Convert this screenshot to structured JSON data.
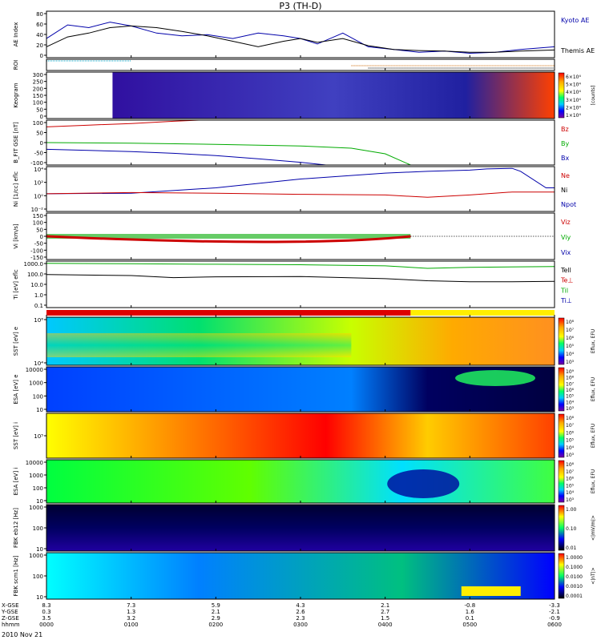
{
  "title": "P3 (TH-D)",
  "date": "2010 Nov 21",
  "chart_data": {
    "type": "line",
    "x_ticks": [
      "0000",
      "0100",
      "0200",
      "0300",
      "0400",
      "0500",
      "0600"
    ],
    "position_rows": [
      {
        "label": "X-GSE",
        "values": [
          "8.3",
          "7.3",
          "5.9",
          "4.3",
          "2.1",
          "-0.8",
          "-3.3"
        ]
      },
      {
        "label": "Y-GSE",
        "values": [
          "0.3",
          "1.3",
          "2.1",
          "2.6",
          "2.7",
          "1.6",
          "-2.1"
        ]
      },
      {
        "label": "Z-GSE",
        "values": [
          "3.5",
          "3.2",
          "2.9",
          "2.3",
          "1.5",
          "0.1",
          "-0.9"
        ]
      },
      {
        "label": "hhmm",
        "values": [
          "0000",
          "0100",
          "0200",
          "0300",
          "0400",
          "0500",
          "0600"
        ]
      }
    ],
    "panels": [
      {
        "id": "ae",
        "ylabel": "AE Index",
        "yticks": [
          "80",
          "60",
          "40",
          "20",
          "0"
        ],
        "legend": [
          {
            "name": "Kyoto AE",
            "color": "#0000aa"
          },
          {
            "name": "Themis AE",
            "color": "#000000"
          }
        ]
      },
      {
        "id": "roi",
        "ylabel": "ROI",
        "yticks": [],
        "legend": []
      },
      {
        "id": "keogram",
        "ylabel": "Keogram",
        "yticks": [
          "300",
          "250",
          "200",
          "150",
          "100",
          "50",
          "0"
        ],
        "colorbar": {
          "labels": [
            "6×10⁴",
            "5×10⁴",
            "4×10⁴",
            "3×10⁴",
            "2×10⁴",
            "1×10⁴"
          ],
          "unit": "[counts]"
        }
      },
      {
        "id": "bfit",
        "ylabel": "B_FIT GSE [nT]",
        "yticks": [
          "100",
          "50",
          "0",
          "-50",
          "-100"
        ],
        "legend": [
          {
            "name": "Bz",
            "color": "#cc0000"
          },
          {
            "name": "By",
            "color": "#00aa00"
          },
          {
            "name": "Bx",
            "color": "#0000aa"
          }
        ]
      },
      {
        "id": "ni",
        "ylabel": "Ni [1/cc] eflc",
        "yticks": [
          "10⁴",
          "10²",
          "10⁰",
          "10⁻²"
        ],
        "legend": [
          {
            "name": "Ne",
            "color": "#cc0000"
          },
          {
            "name": "Ni",
            "color": "#000000"
          },
          {
            "name": "Npot",
            "color": "#0000aa"
          }
        ]
      },
      {
        "id": "vi",
        "ylabel": "Vi [km/s]",
        "yticks": [
          "150",
          "100",
          "50",
          "0",
          "-50",
          "-100",
          "-150"
        ],
        "legend": [
          {
            "name": "Viz",
            "color": "#cc0000"
          },
          {
            "name": "Viy",
            "color": "#00aa00"
          },
          {
            "name": "Vix",
            "color": "#0000aa"
          }
        ]
      },
      {
        "id": "ti",
        "ylabel": "Ti [eV] eflc",
        "yticks": [
          "1000.0",
          "100.0",
          "10.0",
          "1.0",
          "0.1"
        ],
        "legend": [
          {
            "name": "Tell",
            "color": "#000000"
          },
          {
            "name": "Te⊥",
            "color": "#cc0000"
          },
          {
            "name": "Til",
            "color": "#00aa00"
          },
          {
            "name": "Ti⊥",
            "color": "#0000aa"
          }
        ]
      },
      {
        "id": "sst_e",
        "ylabel": "SST [eV] e",
        "yticks": [
          "10⁶",
          "10⁴"
        ],
        "colorbar": {
          "labels": [
            "10⁸",
            "10⁷",
            "10⁶",
            "10⁵",
            "10⁴",
            "10³"
          ],
          "unit": "Eflux, EFU"
        }
      },
      {
        "id": "esa_e",
        "ylabel": "ESA [eV] e",
        "yticks": [
          "10000",
          "1000",
          "100",
          "10"
        ],
        "colorbar": {
          "labels": [
            "10⁹",
            "10⁸",
            "10⁷",
            "10⁶",
            "10⁵",
            "10⁴",
            "10³"
          ],
          "unit": "Eflux, EFU"
        }
      },
      {
        "id": "sst_i",
        "ylabel": "SST [eV] i",
        "yticks": [
          "10⁵"
        ],
        "colorbar": {
          "labels": [
            "10⁸",
            "10⁷",
            "10⁶",
            "10⁵",
            "10⁴",
            "10³"
          ],
          "unit": "Eflux, EFU"
        }
      },
      {
        "id": "esa_i",
        "ylabel": "ESA [eV] i",
        "yticks": [
          "10000",
          "1000",
          "100",
          "10"
        ],
        "colorbar": {
          "labels": [
            "10⁸",
            "10⁷",
            "10⁶",
            "10⁵",
            "10⁴",
            "10³"
          ],
          "unit": "Eflux, EFU"
        }
      },
      {
        "id": "fbk_e",
        "ylabel": "FBK eb12 [Hz]",
        "yticks": [
          "1000",
          "100",
          "10"
        ],
        "colorbar": {
          "labels": [
            "1.00",
            "0.10",
            "0.01"
          ],
          "unit": "<|mV/m|>"
        }
      },
      {
        "id": "fbk_b",
        "ylabel": "FBK scm1 [Hz]",
        "yticks": [
          "1000",
          "100",
          "10"
        ],
        "colorbar": {
          "labels": [
            "1.0000",
            "0.1000",
            "0.0100",
            "0.0010",
            "0.0001"
          ],
          "unit": "<|nT|>"
        }
      }
    ],
    "series": [
      {
        "name": "Kyoto AE",
        "panel": "ae",
        "color": "#0000aa",
        "x": [
          0,
          0.25,
          0.5,
          0.75,
          1.0,
          1.3,
          1.6,
          1.9,
          2.2,
          2.5,
          2.8,
          3.0,
          3.2,
          3.5,
          3.8,
          4.1,
          4.4,
          4.7,
          5.0,
          5.3,
          5.6,
          6.0
        ],
        "y": [
          35,
          60,
          55,
          65,
          58,
          45,
          40,
          42,
          35,
          45,
          40,
          35,
          25,
          45,
          20,
          15,
          10,
          12,
          8,
          10,
          15,
          20
        ]
      },
      {
        "name": "Themis AE",
        "panel": "ae",
        "color": "#000000",
        "x": [
          0,
          0.25,
          0.5,
          0.75,
          1.0,
          1.3,
          1.6,
          1.9,
          2.2,
          2.5,
          2.8,
          3.0,
          3.2,
          3.5,
          3.8,
          4.1,
          4.4,
          4.7,
          5.0,
          5.3,
          5.6,
          6.0
        ],
        "y": [
          20,
          38,
          45,
          55,
          58,
          55,
          48,
          40,
          30,
          20,
          30,
          35,
          28,
          35,
          22,
          15,
          13,
          12,
          10,
          10,
          12,
          14
        ]
      },
      {
        "name": "Bz",
        "panel": "bfit",
        "color": "#cc0000",
        "x": [
          0,
          0.5,
          1.0,
          1.5,
          1.8
        ],
        "y": [
          70,
          78,
          85,
          95,
          100
        ]
      },
      {
        "name": "By",
        "panel": "bfit",
        "color": "#00aa00",
        "x": [
          0,
          1,
          2,
          3,
          3.6,
          4.0,
          4.3
        ],
        "y": [
          0,
          -3,
          -8,
          -15,
          -25,
          -50,
          -100
        ]
      },
      {
        "name": "Bx",
        "panel": "bfit",
        "color": "#0000aa",
        "x": [
          0,
          0.5,
          1,
          1.5,
          2,
          2.5,
          3.0,
          3.3
        ],
        "y": [
          -30,
          -35,
          -40,
          -48,
          -58,
          -72,
          -88,
          -100
        ]
      },
      {
        "name": "Npot",
        "panel": "ni",
        "color": "#0000aa",
        "x": [
          0,
          1,
          2,
          3,
          4,
          4.5,
          5.0,
          5.2,
          5.5,
          5.6,
          5.9,
          6.0
        ],
        "y": [
          0,
          0.1,
          1,
          2.5,
          3.5,
          3.8,
          4.0,
          4.2,
          4.3,
          3.8,
          1,
          1
        ]
      },
      {
        "name": "Ne",
        "panel": "ni",
        "color": "#cc0000",
        "x": [
          0,
          1,
          2,
          3,
          4,
          4.5,
          5,
          5.5,
          6
        ],
        "y": [
          0,
          0.2,
          0.1,
          -0.1,
          -0.2,
          -0.6,
          -0.2,
          0.3,
          0.3
        ]
      },
      {
        "name": "Tell",
        "panel": "ti",
        "color": "#000000",
        "x": [
          0,
          1,
          1.5,
          2,
          3,
          4,
          4.5,
          5,
          5.5,
          6
        ],
        "y": [
          100,
          80,
          50,
          60,
          65,
          40,
          25,
          20,
          20,
          22
        ]
      },
      {
        "name": "Til",
        "panel": "ti",
        "color": "#00aa00",
        "x": [
          0,
          1,
          2,
          3,
          4,
          4.5,
          5,
          6
        ],
        "y": [
          1200,
          1100,
          1000,
          900,
          700,
          400,
          500,
          600
        ]
      }
    ]
  }
}
